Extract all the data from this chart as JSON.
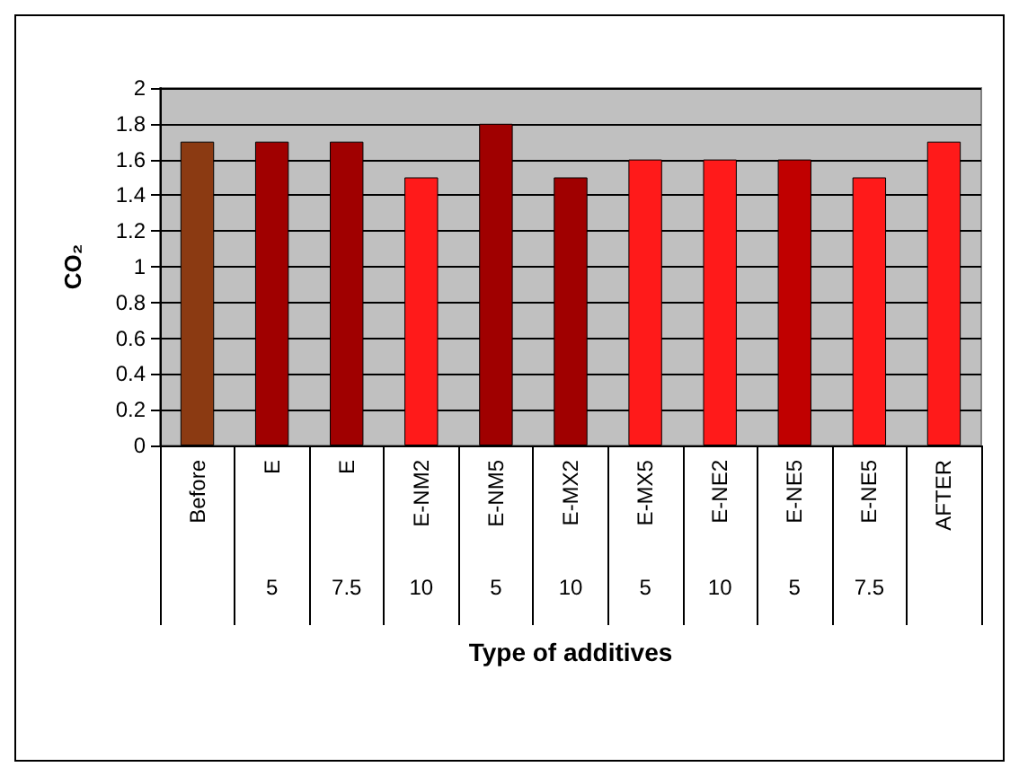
{
  "chart_data": {
    "type": "bar",
    "xlabel": "Type of additives",
    "ylabel": "CO₂",
    "categories": [
      "Before",
      "E\n5",
      "E\n7.5",
      "E-NM2\n10",
      "E-NM5\n5",
      "E-MX2\n10",
      "E-MX5\n5",
      "E-NE2\n10",
      "E-NE5\n5",
      "E-NE5\n7.5",
      "AFTER"
    ],
    "values": [
      1.7,
      1.7,
      1.7,
      1.5,
      1.8,
      1.5,
      1.6,
      1.6,
      1.6,
      1.5,
      1.7
    ],
    "colors": [
      "#8b3a12",
      "#a00000",
      "#a00000",
      "#ff1a1a",
      "#a00000",
      "#a00000",
      "#ff1a1a",
      "#ff1a1a",
      "#c00000",
      "#ff1a1a",
      "#ff1a1a"
    ],
    "ylim": [
      0,
      2
    ],
    "yticks": [
      0,
      0.2,
      0.4,
      0.6,
      0.8,
      1,
      1.2,
      1.4,
      1.6,
      1.8,
      2
    ],
    "grid": "y"
  }
}
